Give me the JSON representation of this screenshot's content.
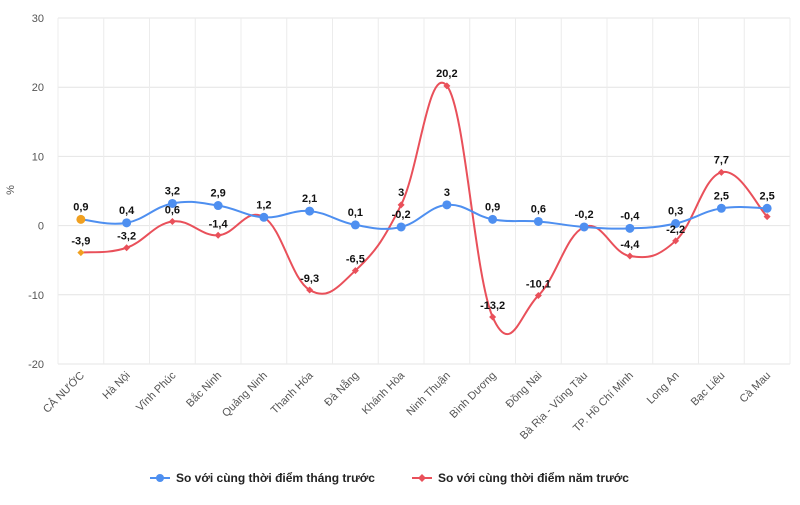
{
  "chart_data": {
    "type": "line",
    "ylabel": "%",
    "ylim": [
      -20,
      30
    ],
    "yticks": [
      -20,
      -10,
      0,
      10,
      20,
      30
    ],
    "grid": true,
    "legend_position": "bottom",
    "categories": [
      "CẢ NƯỚC",
      "Hà Nội",
      "Vĩnh Phúc",
      "Bắc Ninh",
      "Quảng Ninh",
      "Thanh Hóa",
      "Đà Nẵng",
      "Khánh Hòa",
      "Ninh Thuận",
      "Bình Dương",
      "Đồng Nai",
      "Bà Rịa - Vũng Tàu",
      "TP. Hồ Chí Minh",
      "Long An",
      "Bạc Liêu",
      "Cà Mau"
    ],
    "series": [
      {
        "name": "So với cùng thời điểm tháng trước",
        "color": "#4e8ff0",
        "values": [
          0.9,
          0.4,
          3.2,
          2.9,
          1.2,
          2.1,
          0.1,
          -0.2,
          3,
          0.9,
          0.6,
          -0.2,
          -0.4,
          0.3,
          2.5,
          2.5
        ],
        "labels": [
          "0,9",
          "0,4",
          "3,2",
          "2,9",
          "1,2",
          "2,1",
          "0,1",
          "-0,2",
          "3",
          "0,9",
          "0,6",
          "-0,2",
          "-0,4",
          "0,3",
          "2,5",
          "2,5"
        ]
      },
      {
        "name": "So với cùng thời điểm năm trước",
        "color": "#e9505a",
        "values": [
          -3.9,
          -3.2,
          0.6,
          -1.4,
          1.2,
          -9.3,
          -6.5,
          3,
          20.2,
          -13.2,
          -10.1,
          -0.2,
          -4.4,
          -2.2,
          7.7,
          1.3
        ],
        "labels": [
          "-3,9",
          "-3,2",
          "0,6",
          "-1,4",
          "",
          "-9,3",
          "-6,5",
          "3",
          "20,2",
          "-13,2",
          "-10,1",
          "",
          "-4,4",
          "-2,2",
          "7,7",
          ""
        ]
      }
    ],
    "highlight_color": "#f0a020"
  }
}
